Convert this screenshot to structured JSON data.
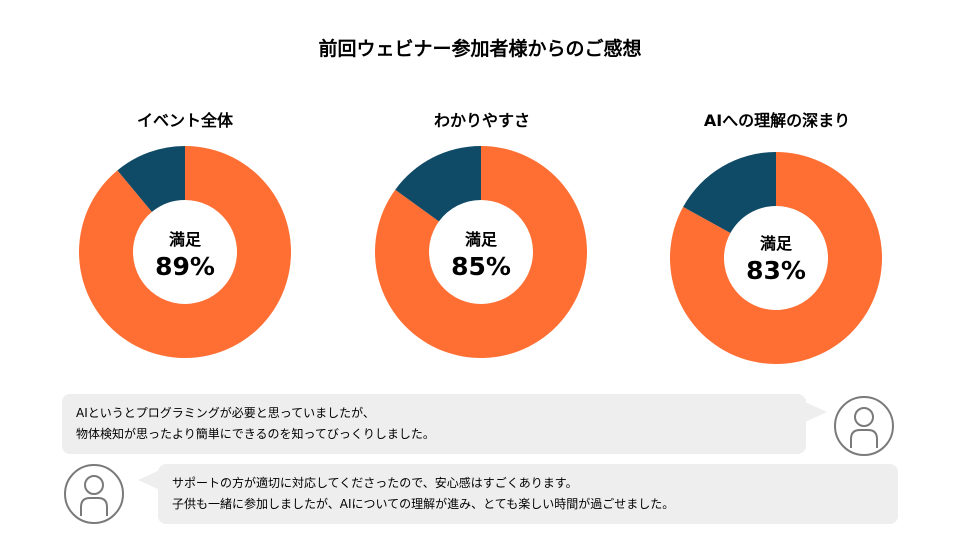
{
  "page": {
    "title": "前回ウェビナー参加者様からのご感想"
  },
  "colors": {
    "satisfied": "#FF6E33",
    "other": "#0F4A66",
    "bubble": "#EEEEEE",
    "avatar": "#7A7A7A"
  },
  "chart_data": [
    {
      "type": "pie",
      "title": "イベント全体",
      "center_label": "満足",
      "center_value": "89%",
      "slices": [
        {
          "name": "満足",
          "value": 89
        },
        {
          "name": "",
          "value": 11
        }
      ]
    },
    {
      "type": "pie",
      "title": "わかりやすさ",
      "center_label": "満足",
      "center_value": "85%",
      "slices": [
        {
          "name": "満足",
          "value": 85
        },
        {
          "name": "",
          "value": 15
        }
      ]
    },
    {
      "type": "pie",
      "title": "AIへの理解の深まり",
      "center_label": "満足",
      "center_value": "83%",
      "slices": [
        {
          "name": "満足",
          "value": 83
        },
        {
          "name": "",
          "value": 17
        }
      ]
    }
  ],
  "comments": [
    {
      "lines": [
        "AIというとプログラミングが必要と思っていましたが、",
        "物体検知が思ったより簡単にできるのを知ってびっくりしました。"
      ],
      "avatar_icon": "person-icon"
    },
    {
      "lines": [
        "サポートの方が適切に対応してくださったので、安心感はすごくあります。",
        "子供も一緒に参加しましたが、AIについての理解が進み、とても楽しい時間が過ごせました。"
      ],
      "avatar_icon": "person-icon"
    }
  ]
}
